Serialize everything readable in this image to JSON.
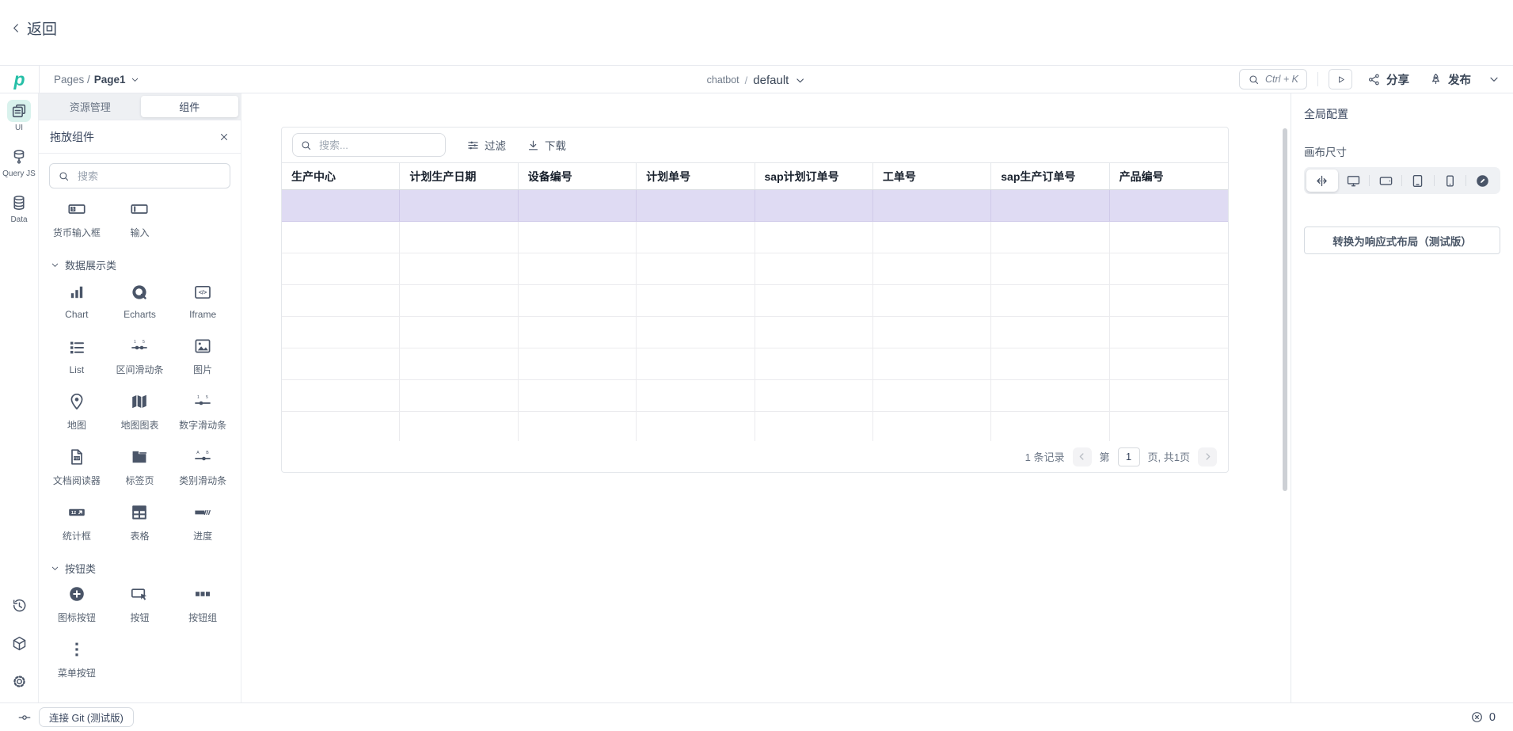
{
  "colors": {
    "accent": "#26bfa7",
    "row_highlight": "#dfdbf3"
  },
  "topbar": {
    "back_label": "返回"
  },
  "header": {
    "breadcrumb_prefix": "Pages /",
    "breadcrumb_page": "Page1",
    "app_name": "chatbot",
    "app_separator": "/",
    "app_env": "default",
    "search_shortcut": "Ctrl + K",
    "share_label": "分享",
    "publish_label": "发布"
  },
  "left_rail": {
    "top_items": [
      {
        "name": "ui",
        "icon": "pages-icon",
        "label": "UI",
        "active": true
      },
      {
        "name": "query-js",
        "icon": "query-db-icon",
        "label": "Query JS",
        "active": false
      },
      {
        "name": "data",
        "icon": "database-icon",
        "label": "Data",
        "active": false
      }
    ],
    "bottom_items": [
      {
        "name": "history",
        "icon": "history-icon"
      },
      {
        "name": "libraries",
        "icon": "cube-icon"
      },
      {
        "name": "settings",
        "icon": "settings-gear-icon"
      }
    ]
  },
  "left_panel": {
    "tabs": [
      {
        "name": "resources",
        "label": "资源管理",
        "active": false
      },
      {
        "name": "components",
        "label": "组件",
        "active": true
      }
    ],
    "title": "拖放组件",
    "search_placeholder": "搜索",
    "sections": [
      {
        "title": "",
        "items": [
          {
            "icon": "currency-input-icon",
            "label": "货币输入框"
          },
          {
            "icon": "input-icon",
            "label": "输入"
          }
        ]
      },
      {
        "title": "数据展示类",
        "items": [
          {
            "icon": "chart-icon",
            "label": "Chart"
          },
          {
            "icon": "echarts-icon",
            "label": "Echarts"
          },
          {
            "icon": "iframe-icon",
            "label": "Iframe"
          },
          {
            "icon": "list-icon",
            "label": "List"
          },
          {
            "icon": "range-slider-icon",
            "label": "区间滑动条"
          },
          {
            "icon": "image-icon",
            "label": "图片"
          },
          {
            "icon": "map-pin-icon",
            "label": "地图"
          },
          {
            "icon": "map-chart-icon",
            "label": "地图图表"
          },
          {
            "icon": "number-slider-icon",
            "label": "数字滑动条"
          },
          {
            "icon": "document-viewer-icon",
            "label": "文档阅读器"
          },
          {
            "icon": "tabs-icon",
            "label": "标签页"
          },
          {
            "icon": "category-slider-icon",
            "label": "类别滑动条"
          },
          {
            "icon": "stat-box-icon",
            "label": "统计框"
          },
          {
            "icon": "table-icon",
            "label": "表格"
          },
          {
            "icon": "progress-icon",
            "label": "进度"
          }
        ]
      },
      {
        "title": "按钮类",
        "items": [
          {
            "icon": "icon-button-icon",
            "label": "图标按钮"
          },
          {
            "icon": "button-icon",
            "label": "按钮"
          },
          {
            "icon": "button-group-icon",
            "label": "按钮组"
          },
          {
            "icon": "menu-button-icon",
            "label": "菜单按钮"
          }
        ]
      }
    ]
  },
  "canvas": {
    "table": {
      "toolbar": {
        "search_placeholder": "搜索...",
        "filter_label": "过滤",
        "download_label": "下载"
      },
      "columns": [
        "生产中心",
        "计划生产日期",
        "设备编号",
        "计划单号",
        "sap计划订单号",
        "工单号",
        "sap生产订单号",
        "产品编号"
      ],
      "row_count": 8,
      "highlight_row_index": 0,
      "pagination": {
        "records": "1 条记录",
        "page_prefix": "第",
        "page_value": "1",
        "page_suffix": "页, 共1页"
      }
    }
  },
  "right_panel": {
    "title": "全局配置",
    "canvas_size_label": "画布尺寸",
    "devices": [
      {
        "icon": "fluid-width-icon",
        "selected": true
      },
      {
        "icon": "desktop-icon",
        "selected": false
      },
      {
        "icon": "tablet-landscape-icon",
        "selected": false
      },
      {
        "icon": "tablet-icon",
        "selected": false
      },
      {
        "icon": "mobile-icon",
        "selected": false
      },
      {
        "icon": "custom-size-icon",
        "selected": false
      }
    ],
    "convert_button_label": "转换为响应式布局（测试版）"
  },
  "bottom_bar": {
    "git_button_label": "连接 Git (测试版)",
    "error_count": "0"
  }
}
